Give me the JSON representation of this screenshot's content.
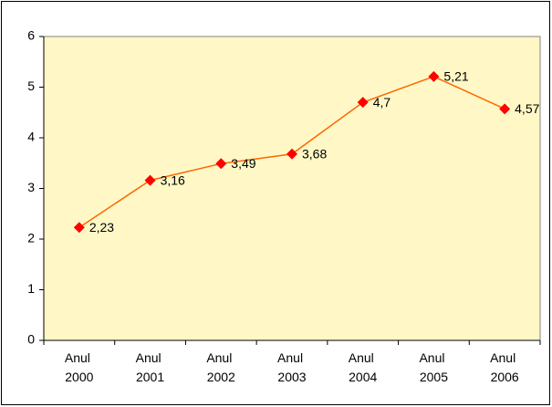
{
  "chart_data": {
    "type": "line",
    "categories": [
      "Anul 2000",
      "Anul 2001",
      "Anul 2002",
      "Anul 2003",
      "Anul 2004",
      "Anul 2005",
      "Anul 2006"
    ],
    "series": [
      {
        "name": null,
        "color": "#ff6600",
        "marker_color": "#ff0000",
        "values": [
          2.23,
          3.16,
          3.49,
          3.68,
          4.7,
          5.21,
          4.57
        ],
        "value_labels": [
          "2,23",
          "3,16",
          "3,49",
          "3,68",
          "4,7",
          "5,21",
          "4,57"
        ]
      }
    ],
    "ylim": [
      0,
      6
    ],
    "yticks": [
      0,
      1,
      2,
      3,
      4,
      5,
      6
    ],
    "grid": false,
    "plot_background": "#fff8c6"
  }
}
